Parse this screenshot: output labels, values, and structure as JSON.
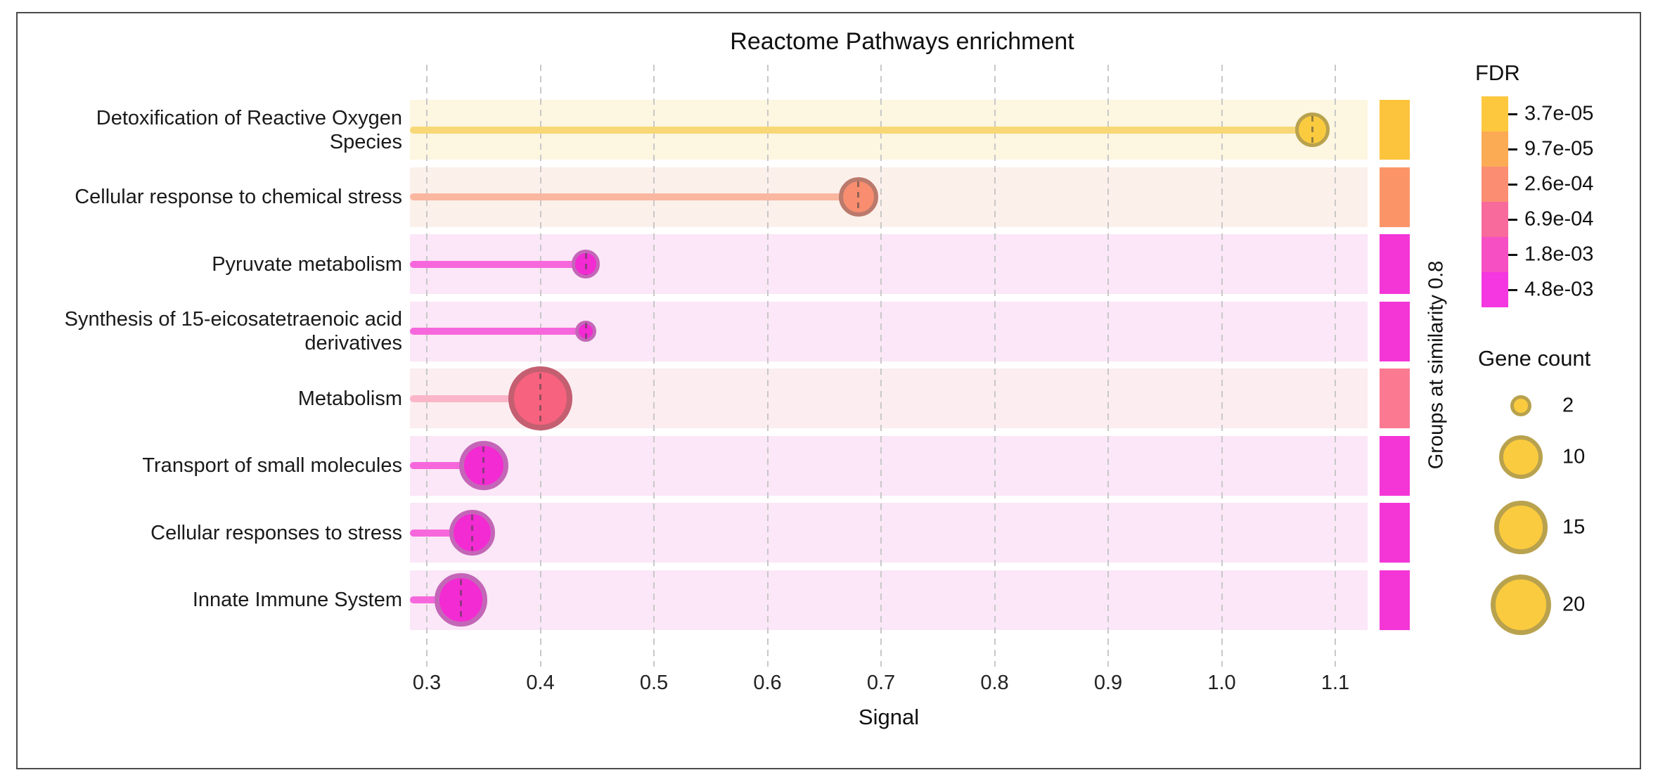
{
  "chart_data": {
    "type": "scatter",
    "variant": "lollipop",
    "title": "Reactome Pathways enrichment",
    "xlabel": "Signal",
    "ylabel": "",
    "xlim": [
      0.285,
      1.129
    ],
    "x_ticks": [
      "0.3",
      "0.4",
      "0.5",
      "0.6",
      "0.7",
      "0.8",
      "0.9",
      "1.0",
      "1.1"
    ],
    "grid": "vertical-dashed",
    "right_axis_label": "Groups at similarity 0.8",
    "categories": [
      "Detoxification of Reactive Oxygen Species",
      "Cellular response to chemical stress",
      "Pyruvate metabolism",
      "Synthesis of 15-eicosatetraenoic acid derivatives",
      "Metabolism",
      "Transport of small molecules",
      "Cellular responses to stress",
      "Innate Immune System"
    ],
    "points": [
      {
        "pathway": "Detoxification of Reactive Oxygen Species",
        "label_lines": [
          "Detoxification of Reactive Oxygen",
          "Species"
        ],
        "signal": 1.08,
        "gene_count": 6,
        "fdr_approx": "3.7e-05",
        "group": "gold"
      },
      {
        "pathway": "Cellular response to chemical stress",
        "label_lines": [
          "Cellular response to chemical stress"
        ],
        "signal": 0.68,
        "gene_count": 8,
        "fdr_approx": "1.5e-04",
        "group": "salmon"
      },
      {
        "pathway": "Pyruvate metabolism",
        "label_lines": [
          "Pyruvate metabolism"
        ],
        "signal": 0.44,
        "gene_count": 4,
        "fdr_approx": "4.8e-03",
        "group": "magenta"
      },
      {
        "pathway": "Synthesis of 15-eicosatetraenoic acid derivatives",
        "label_lines": [
          "Synthesis of 15-eicosatetraenoic acid",
          "derivatives"
        ],
        "signal": 0.44,
        "gene_count": 2,
        "fdr_approx": "4.8e-03",
        "group": "magenta"
      },
      {
        "pathway": "Metabolism",
        "label_lines": [
          "Metabolism"
        ],
        "signal": 0.4,
        "gene_count": 22,
        "fdr_approx": "1.2e-03",
        "group": "rose"
      },
      {
        "pathway": "Transport of small molecules",
        "label_lines": [
          "Transport of small molecules"
        ],
        "signal": 0.35,
        "gene_count": 13,
        "fdr_approx": "4.8e-03",
        "group": "magenta"
      },
      {
        "pathway": "Cellular responses to stress",
        "label_lines": [
          "Cellular responses to stress"
        ],
        "signal": 0.34,
        "gene_count": 11,
        "fdr_approx": "4.8e-03",
        "group": "magenta"
      },
      {
        "pathway": "Innate Immune System",
        "label_lines": [
          "Innate Immune System"
        ],
        "signal": 0.33,
        "gene_count": 15,
        "fdr_approx": "4.8e-03",
        "group": "magenta"
      }
    ],
    "legend_fdr": {
      "title": "FDR",
      "entries": [
        {
          "label": "3.7e-05",
          "color": "#FDC83E"
        },
        {
          "label": "9.7e-05",
          "color": "#FCAB55"
        },
        {
          "label": "2.6e-04",
          "color": "#FA8D72"
        },
        {
          "label": "6.9e-04",
          "color": "#F8699C"
        },
        {
          "label": "1.8e-03",
          "color": "#F64FC4"
        },
        {
          "label": "4.8e-03",
          "color": "#F437E0"
        }
      ]
    },
    "legend_gene_count": {
      "title": "Gene count",
      "entries": [
        "2",
        "10",
        "15",
        "20"
      ],
      "counts": [
        2,
        10,
        15,
        20
      ],
      "swatch_fill": "#FBCB3F",
      "swatch_ring": "#B9A24E"
    },
    "palette": {
      "gold": {
        "band": "#FDF6E0",
        "stem": "#F8D876",
        "fill": "#FBCB3F",
        "ring": "#B9A24E",
        "strip": "#FCC33C"
      },
      "salmon": {
        "band": "#FCF0EA",
        "stem": "#FAB7A0",
        "fill": "#F98D6F",
        "ring": "#BA7A6C",
        "strip": "#FB9568"
      },
      "magenta": {
        "band": "#FBE7F7",
        "stem": "#F767DC",
        "fill": "#F32BD3",
        "ring": "#C466B8",
        "strip": "#F436D6"
      },
      "rose": {
        "band": "#FCEDF1",
        "stem": "#FAB6C8",
        "fill": "#F7627E",
        "ring": "#C45E71",
        "strip": "#FB7A92"
      }
    },
    "colors": {
      "grid_line": "#c8c8c8",
      "frame_border": "#4b4b4b",
      "text": "#1a1a1a"
    }
  }
}
